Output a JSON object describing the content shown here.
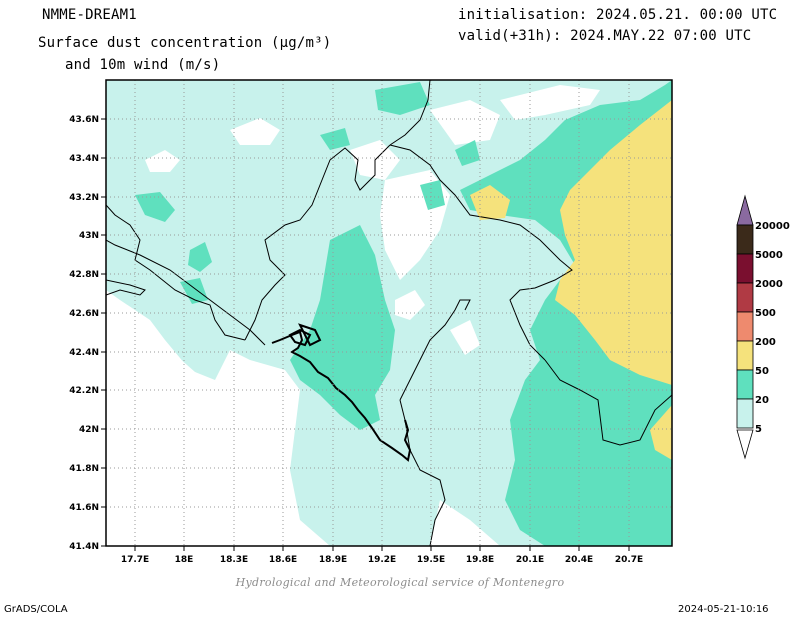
{
  "header": {
    "model": "NMME-DREAM1",
    "title_line1": "Surface dust concentration (μg/m³)",
    "title_line2": "and 10m wind (m/s)",
    "init": "initialisation: 2024.05.21. 00:00 UTC",
    "valid": "valid(+31h): 2024.MAY.22 07:00 UTC"
  },
  "map": {
    "lat_labels": [
      "43.6N",
      "43.4N",
      "43.2N",
      "43N",
      "42.8N",
      "42.6N",
      "42.4N",
      "42.2N",
      "42N",
      "41.8N",
      "41.6N",
      "41.4N"
    ],
    "lon_labels": [
      "17.7E",
      "18E",
      "18.3E",
      "18.6E",
      "18.9E",
      "19.2E",
      "19.5E",
      "19.8E",
      "20.1E",
      "20.4E",
      "20.7E"
    ],
    "fill_colors": {
      "light": "#c8f2ec",
      "medium": "#5fe0be",
      "high": "#f5e27c"
    }
  },
  "legend": {
    "levels": [
      {
        "label": "20000",
        "color": "#3b2a1a"
      },
      {
        "label": "5000",
        "color": "#7a0f2f"
      },
      {
        "label": "2000",
        "color": "#b03a44"
      },
      {
        "label": "500",
        "color": "#ee8a6e"
      },
      {
        "label": "200",
        "color": "#f5e27c"
      },
      {
        "label": "50",
        "color": "#5fe0be"
      },
      {
        "label": "20",
        "color": "#c8f2ec"
      },
      {
        "label": "5",
        "color": "#ffffff"
      }
    ],
    "top_arrow_color": "#8a6aa0"
  },
  "footer": {
    "credit": "Hydrological and Meteorological service of Montenegro",
    "left": "GrADS/COLA",
    "right": "2024-05-21-10:16"
  }
}
